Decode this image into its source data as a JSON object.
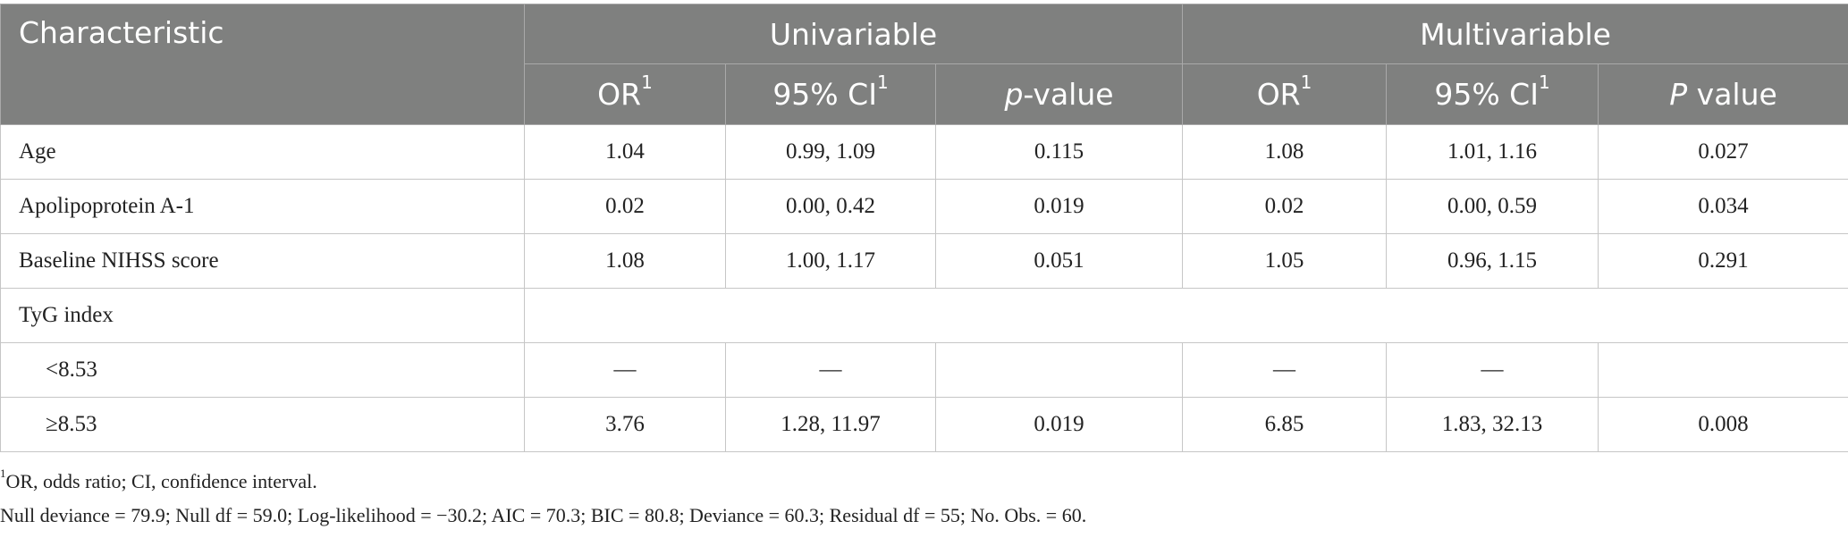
{
  "table": {
    "header": {
      "characteristic": "Characteristic",
      "univariable": "Univariable",
      "multivariable": "Multivariable",
      "uni_or": "OR",
      "uni_ci": "95% CI",
      "uni_p_italic": "p",
      "uni_p_rest": "-value",
      "multi_or": "OR",
      "multi_ci": "95% CI",
      "multi_p_italic": "P",
      "multi_p_rest": " value",
      "footnote_mark": "1"
    },
    "rows": [
      {
        "label": "Age",
        "uni_or": "1.04",
        "uni_ci": "0.99, 1.09",
        "uni_p": "0.115",
        "multi_or": "1.08",
        "multi_ci": "1.01, 1.16",
        "multi_p": "0.027"
      },
      {
        "label": "Apolipoprotein A-1",
        "uni_or": "0.02",
        "uni_ci": "0.00, 0.42",
        "uni_p": "0.019",
        "multi_or": "0.02",
        "multi_ci": "0.00, 0.59",
        "multi_p": "0.034"
      },
      {
        "label": "Baseline NIHSS score",
        "uni_or": "1.08",
        "uni_ci": "1.00, 1.17",
        "uni_p": "0.051",
        "multi_or": "1.05",
        "multi_ci": "0.96, 1.15",
        "multi_p": "0.291"
      },
      {
        "label": "TyG index"
      },
      {
        "label": "<8.53",
        "uni_or": "—",
        "uni_ci": "—",
        "uni_p": "",
        "multi_or": "—",
        "multi_ci": "—",
        "multi_p": ""
      },
      {
        "label": "≥8.53",
        "uni_or": "3.76",
        "uni_ci": "1.28, 11.97",
        "uni_p": "0.019",
        "multi_or": "6.85",
        "multi_ci": "1.83, 32.13",
        "multi_p": "0.008"
      }
    ]
  },
  "footnotes": {
    "mark": "1",
    "abbreviations": "OR, odds ratio; CI, confidence interval.",
    "model_stats": "Null deviance = 79.9; Null df = 59.0; Log-likelihood = −30.2; AIC = 70.3; BIC = 80.8; Deviance = 60.3; Residual df = 55; No. Obs. = 60."
  }
}
